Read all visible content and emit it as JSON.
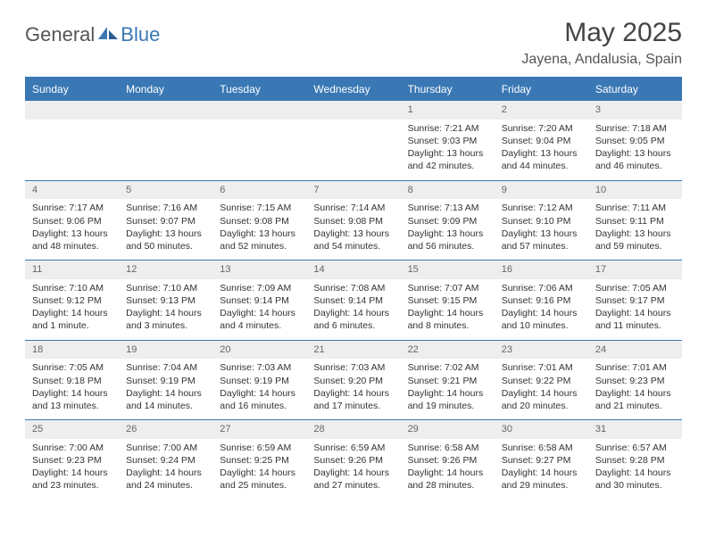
{
  "logo": {
    "text1": "General",
    "text2": "Blue",
    "color1": "#555555",
    "color2": "#3a78b5"
  },
  "title": "May 2025",
  "location": "Jayena, Andalusia, Spain",
  "colors": {
    "header_bg": "#3a78b5",
    "header_text": "#ffffff",
    "daynum_bg": "#eeeeee",
    "daynum_text": "#666666",
    "body_text": "#333333",
    "border": "#3a78b5",
    "background": "#ffffff"
  },
  "fonts": {
    "title_size": 30,
    "location_size": 16,
    "header_size": 12,
    "cell_size": 10.5
  },
  "day_headers": [
    "Sunday",
    "Monday",
    "Tuesday",
    "Wednesday",
    "Thursday",
    "Friday",
    "Saturday"
  ],
  "weeks": [
    [
      {
        "num": "",
        "sunrise": "",
        "sunset": "",
        "daylight": ""
      },
      {
        "num": "",
        "sunrise": "",
        "sunset": "",
        "daylight": ""
      },
      {
        "num": "",
        "sunrise": "",
        "sunset": "",
        "daylight": ""
      },
      {
        "num": "",
        "sunrise": "",
        "sunset": "",
        "daylight": ""
      },
      {
        "num": "1",
        "sunrise": "Sunrise: 7:21 AM",
        "sunset": "Sunset: 9:03 PM",
        "daylight": "Daylight: 13 hours and 42 minutes."
      },
      {
        "num": "2",
        "sunrise": "Sunrise: 7:20 AM",
        "sunset": "Sunset: 9:04 PM",
        "daylight": "Daylight: 13 hours and 44 minutes."
      },
      {
        "num": "3",
        "sunrise": "Sunrise: 7:18 AM",
        "sunset": "Sunset: 9:05 PM",
        "daylight": "Daylight: 13 hours and 46 minutes."
      }
    ],
    [
      {
        "num": "4",
        "sunrise": "Sunrise: 7:17 AM",
        "sunset": "Sunset: 9:06 PM",
        "daylight": "Daylight: 13 hours and 48 minutes."
      },
      {
        "num": "5",
        "sunrise": "Sunrise: 7:16 AM",
        "sunset": "Sunset: 9:07 PM",
        "daylight": "Daylight: 13 hours and 50 minutes."
      },
      {
        "num": "6",
        "sunrise": "Sunrise: 7:15 AM",
        "sunset": "Sunset: 9:08 PM",
        "daylight": "Daylight: 13 hours and 52 minutes."
      },
      {
        "num": "7",
        "sunrise": "Sunrise: 7:14 AM",
        "sunset": "Sunset: 9:08 PM",
        "daylight": "Daylight: 13 hours and 54 minutes."
      },
      {
        "num": "8",
        "sunrise": "Sunrise: 7:13 AM",
        "sunset": "Sunset: 9:09 PM",
        "daylight": "Daylight: 13 hours and 56 minutes."
      },
      {
        "num": "9",
        "sunrise": "Sunrise: 7:12 AM",
        "sunset": "Sunset: 9:10 PM",
        "daylight": "Daylight: 13 hours and 57 minutes."
      },
      {
        "num": "10",
        "sunrise": "Sunrise: 7:11 AM",
        "sunset": "Sunset: 9:11 PM",
        "daylight": "Daylight: 13 hours and 59 minutes."
      }
    ],
    [
      {
        "num": "11",
        "sunrise": "Sunrise: 7:10 AM",
        "sunset": "Sunset: 9:12 PM",
        "daylight": "Daylight: 14 hours and 1 minute."
      },
      {
        "num": "12",
        "sunrise": "Sunrise: 7:10 AM",
        "sunset": "Sunset: 9:13 PM",
        "daylight": "Daylight: 14 hours and 3 minutes."
      },
      {
        "num": "13",
        "sunrise": "Sunrise: 7:09 AM",
        "sunset": "Sunset: 9:14 PM",
        "daylight": "Daylight: 14 hours and 4 minutes."
      },
      {
        "num": "14",
        "sunrise": "Sunrise: 7:08 AM",
        "sunset": "Sunset: 9:14 PM",
        "daylight": "Daylight: 14 hours and 6 minutes."
      },
      {
        "num": "15",
        "sunrise": "Sunrise: 7:07 AM",
        "sunset": "Sunset: 9:15 PM",
        "daylight": "Daylight: 14 hours and 8 minutes."
      },
      {
        "num": "16",
        "sunrise": "Sunrise: 7:06 AM",
        "sunset": "Sunset: 9:16 PM",
        "daylight": "Daylight: 14 hours and 10 minutes."
      },
      {
        "num": "17",
        "sunrise": "Sunrise: 7:05 AM",
        "sunset": "Sunset: 9:17 PM",
        "daylight": "Daylight: 14 hours and 11 minutes."
      }
    ],
    [
      {
        "num": "18",
        "sunrise": "Sunrise: 7:05 AM",
        "sunset": "Sunset: 9:18 PM",
        "daylight": "Daylight: 14 hours and 13 minutes."
      },
      {
        "num": "19",
        "sunrise": "Sunrise: 7:04 AM",
        "sunset": "Sunset: 9:19 PM",
        "daylight": "Daylight: 14 hours and 14 minutes."
      },
      {
        "num": "20",
        "sunrise": "Sunrise: 7:03 AM",
        "sunset": "Sunset: 9:19 PM",
        "daylight": "Daylight: 14 hours and 16 minutes."
      },
      {
        "num": "21",
        "sunrise": "Sunrise: 7:03 AM",
        "sunset": "Sunset: 9:20 PM",
        "daylight": "Daylight: 14 hours and 17 minutes."
      },
      {
        "num": "22",
        "sunrise": "Sunrise: 7:02 AM",
        "sunset": "Sunset: 9:21 PM",
        "daylight": "Daylight: 14 hours and 19 minutes."
      },
      {
        "num": "23",
        "sunrise": "Sunrise: 7:01 AM",
        "sunset": "Sunset: 9:22 PM",
        "daylight": "Daylight: 14 hours and 20 minutes."
      },
      {
        "num": "24",
        "sunrise": "Sunrise: 7:01 AM",
        "sunset": "Sunset: 9:23 PM",
        "daylight": "Daylight: 14 hours and 21 minutes."
      }
    ],
    [
      {
        "num": "25",
        "sunrise": "Sunrise: 7:00 AM",
        "sunset": "Sunset: 9:23 PM",
        "daylight": "Daylight: 14 hours and 23 minutes."
      },
      {
        "num": "26",
        "sunrise": "Sunrise: 7:00 AM",
        "sunset": "Sunset: 9:24 PM",
        "daylight": "Daylight: 14 hours and 24 minutes."
      },
      {
        "num": "27",
        "sunrise": "Sunrise: 6:59 AM",
        "sunset": "Sunset: 9:25 PM",
        "daylight": "Daylight: 14 hours and 25 minutes."
      },
      {
        "num": "28",
        "sunrise": "Sunrise: 6:59 AM",
        "sunset": "Sunset: 9:26 PM",
        "daylight": "Daylight: 14 hours and 27 minutes."
      },
      {
        "num": "29",
        "sunrise": "Sunrise: 6:58 AM",
        "sunset": "Sunset: 9:26 PM",
        "daylight": "Daylight: 14 hours and 28 minutes."
      },
      {
        "num": "30",
        "sunrise": "Sunrise: 6:58 AM",
        "sunset": "Sunset: 9:27 PM",
        "daylight": "Daylight: 14 hours and 29 minutes."
      },
      {
        "num": "31",
        "sunrise": "Sunrise: 6:57 AM",
        "sunset": "Sunset: 9:28 PM",
        "daylight": "Daylight: 14 hours and 30 minutes."
      }
    ]
  ]
}
